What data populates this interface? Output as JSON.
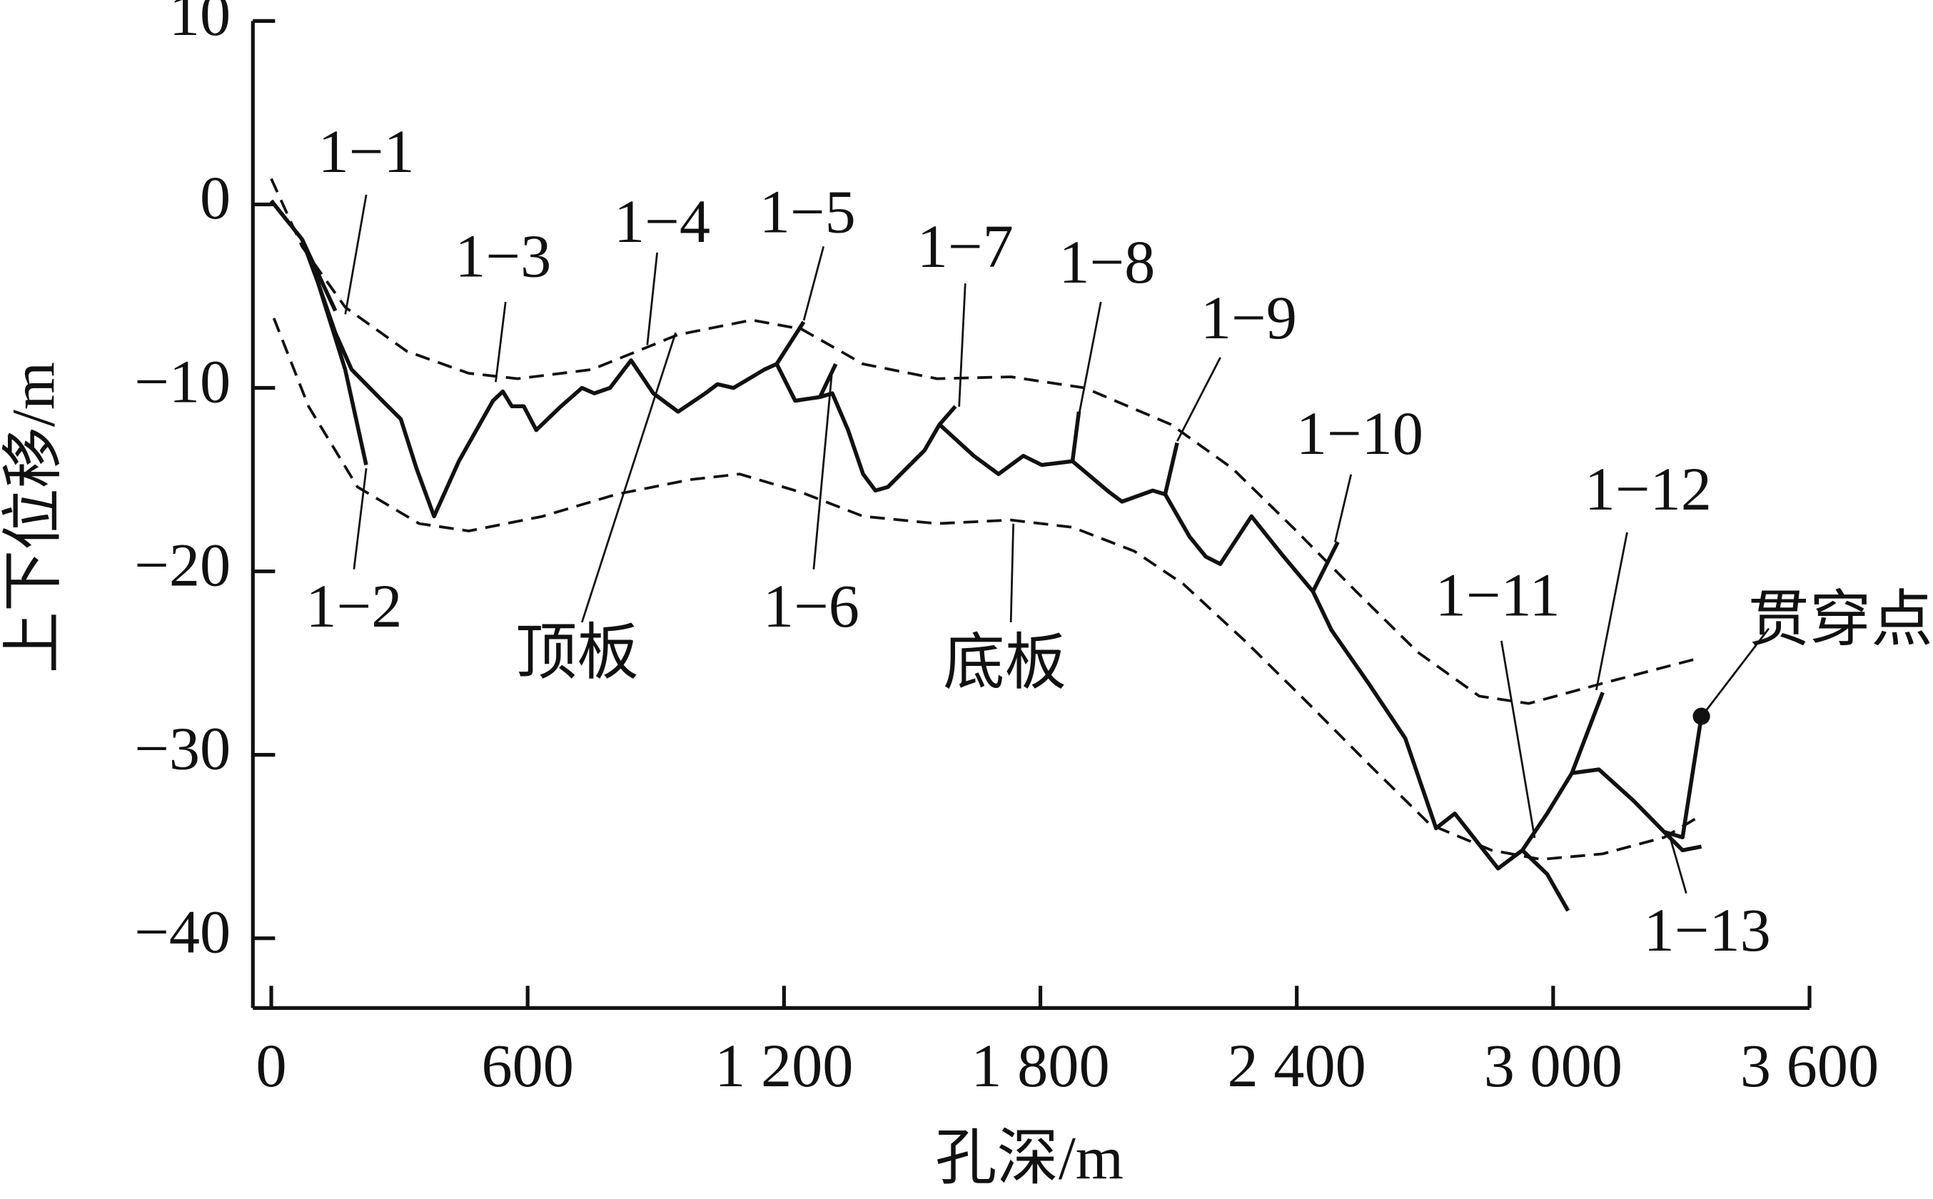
{
  "chart_data": {
    "type": "line",
    "xlabel": "孔深/m",
    "ylabel": "上下位移/m",
    "xlim": [
      -43,
      3600
    ],
    "ylim": [
      -43.8,
      10
    ],
    "xticks": [
      0,
      600,
      {
        "value": 1200,
        "label": "1 200"
      },
      {
        "value": 1800,
        "label": "1 800"
      },
      {
        "value": 2400,
        "label": "2 400"
      },
      {
        "value": 3000,
        "label": "3 000"
      },
      {
        "value": 3600,
        "label": "3 600"
      }
    ],
    "yticks": [
      10,
      0,
      {
        "value": -10,
        "label": "−10"
      },
      {
        "value": -20,
        "label": "−20"
      },
      {
        "value": -30,
        "label": "−30"
      },
      {
        "value": -40,
        "label": "−40"
      }
    ],
    "grid": false,
    "series": [
      {
        "color": "#111111",
        "linestyle": "solid",
        "x": [
          0,
          72,
          110,
          150,
          188,
          260,
          303,
          340,
          381,
          439,
          519,
          542,
          563,
          591,
          620,
          678,
          727,
          756,
          793,
          842,
          894,
          952,
          1016,
          1044,
          1082,
          1154,
          1183,
          1226,
          1284,
          1313,
          1350,
          1385,
          1414,
          1443,
          1529,
          1564,
          1644,
          1702,
          1760,
          1803,
          1875,
          1962,
          1991,
          2063,
          2092,
          2149,
          2187,
          2221,
          2294,
          2366,
          2438,
          2481,
          2568,
          2654,
          2726,
          2770,
          2871,
          2928,
          2986,
          3044,
          3107,
          3188,
          3260,
          3303,
          3347
        ],
        "values": [
          0.2,
          -1.9,
          -4.3,
          -7.0,
          -9.0,
          -10.7,
          -11.7,
          -14.4,
          -17.0,
          -14.0,
          -10.7,
          -10.2,
          -11.0,
          -11.0,
          -12.3,
          -11.0,
          -10.0,
          -10.3,
          -10.0,
          -8.5,
          -10.3,
          -11.3,
          -10.3,
          -9.8,
          -10.0,
          -9.0,
          -8.7,
          -10.7,
          -10.5,
          -10.3,
          -12.3,
          -14.7,
          -15.6,
          -15.4,
          -13.4,
          -12.0,
          -13.7,
          -14.7,
          -13.7,
          -14.2,
          -14.0,
          -15.7,
          -16.2,
          -15.6,
          -15.8,
          -18.1,
          -19.2,
          -19.6,
          -17.0,
          -19.1,
          -21.1,
          -23.2,
          -26.1,
          -29.1,
          -34.0,
          -33.2,
          -36.2,
          -35.2,
          -33.2,
          -31.0,
          -30.8,
          -32.5,
          -34.2,
          -34.5,
          -27.9
        ]
      },
      {
        "color": "#111111",
        "linestyle": "solid",
        "x": [
          72,
          150
        ],
        "values": [
          -1.9,
          -5.8
        ]
      },
      {
        "color": "#111111",
        "linestyle": "solid",
        "x": [
          110,
          173,
          222
        ],
        "values": [
          -4.3,
          -9.0,
          -14.2
        ]
      },
      {
        "color": "#111111",
        "linestyle": "solid",
        "x": [
          1183,
          1246
        ],
        "values": [
          -8.7,
          -6.4
        ]
      },
      {
        "color": "#111111",
        "linestyle": "solid",
        "x": [
          1284,
          1321
        ],
        "values": [
          -10.5,
          -8.7
        ]
      },
      {
        "color": "#111111",
        "linestyle": "solid",
        "x": [
          1564,
          1601
        ],
        "values": [
          -12.0,
          -11.0
        ]
      },
      {
        "color": "#111111",
        "linestyle": "solid",
        "x": [
          1875,
          1890
        ],
        "values": [
          -14.0,
          -11.3
        ]
      },
      {
        "color": "#111111",
        "linestyle": "solid",
        "x": [
          2092,
          2120
        ],
        "values": [
          -15.8,
          -13.0
        ]
      },
      {
        "color": "#111111",
        "linestyle": "solid",
        "x": [
          2438,
          2496
        ],
        "values": [
          -21.1,
          -18.4
        ]
      },
      {
        "color": "#111111",
        "linestyle": "solid",
        "x": [
          2928,
          2986,
          3035
        ],
        "values": [
          -35.2,
          -36.5,
          -38.5
        ]
      },
      {
        "color": "#111111",
        "linestyle": "solid",
        "x": [
          3044,
          3116
        ],
        "values": [
          -31.0,
          -26.6
        ]
      },
      {
        "color": "#111111",
        "linestyle": "solid",
        "x": [
          3260,
          3303,
          3347
        ],
        "values": [
          -34.2,
          -35.2,
          -35.0
        ]
      },
      {
        "name": "顶板",
        "color": "#111111",
        "linestyle": "dashed",
        "x": [
          0,
          72,
          173,
          317,
          462,
          577,
          750,
          952,
          1125,
          1241,
          1385,
          1558,
          1731,
          1904,
          2106,
          2250,
          2395,
          2539,
          2683,
          2827,
          2943,
          3116,
          3347
        ],
        "values": [
          1.4,
          -2.3,
          -5.6,
          -8.0,
          -9.2,
          -9.5,
          -9.0,
          -7.1,
          -6.3,
          -6.8,
          -8.7,
          -9.5,
          -9.4,
          -10.0,
          -12.0,
          -14.4,
          -17.7,
          -21.1,
          -24.4,
          -26.8,
          -27.2,
          -26.1,
          -24.7
        ]
      },
      {
        "name": "底板",
        "color": "#111111",
        "linestyle": "dashed",
        "x": [
          6,
          87,
          202,
          346,
          462,
          635,
          808,
          981,
          1096,
          1241,
          1385,
          1558,
          1731,
          1875,
          2020,
          2135,
          2279,
          2423,
          2568,
          2712,
          2856,
          2972,
          3116,
          3260,
          3332
        ],
        "values": [
          -6.2,
          -11.0,
          -15.4,
          -17.4,
          -17.8,
          -17.0,
          -15.8,
          -15.0,
          -14.7,
          -15.7,
          -17.0,
          -17.4,
          -17.2,
          -17.6,
          -18.9,
          -20.7,
          -23.8,
          -27.1,
          -30.5,
          -33.8,
          -35.2,
          -35.7,
          -35.4,
          -34.5,
          -33.5
        ]
      }
    ],
    "annotations": [
      {
        "text": "1−1"
      },
      {
        "text": "1−2"
      },
      {
        "text": "1−3"
      },
      {
        "text": "1−4"
      },
      {
        "text": "1−5"
      },
      {
        "text": "1−6"
      },
      {
        "text": "1−7"
      },
      {
        "text": "1−8"
      },
      {
        "text": "1−9"
      },
      {
        "text": "1−10"
      },
      {
        "text": "1−11"
      },
      {
        "text": "1−12"
      },
      {
        "text": "1−13"
      },
      {
        "text": "贯穿点"
      }
    ]
  }
}
